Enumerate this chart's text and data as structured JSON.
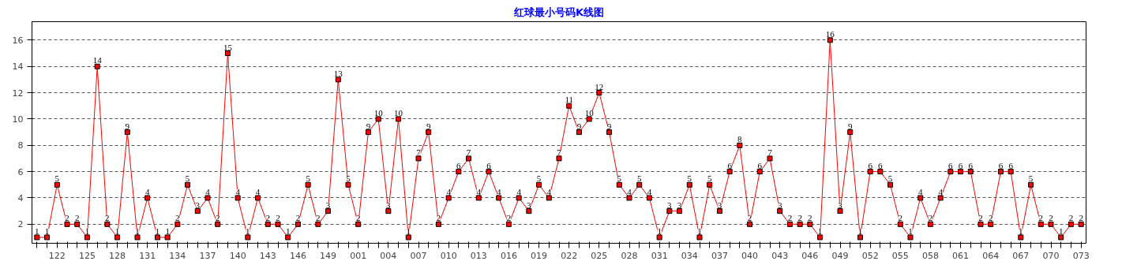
{
  "chart_data": {
    "type": "line",
    "title": "红球最小号码K线图",
    "categories": [
      null,
      null,
      "122",
      null,
      null,
      "125",
      null,
      null,
      "128",
      null,
      null,
      "131",
      null,
      null,
      "134",
      null,
      null,
      "137",
      null,
      null,
      "140",
      null,
      null,
      "143",
      null,
      null,
      "146",
      null,
      null,
      "149",
      null,
      null,
      "001",
      null,
      null,
      "004",
      null,
      null,
      "007",
      null,
      null,
      "010",
      null,
      null,
      "013",
      null,
      null,
      "016",
      null,
      null,
      "019",
      null,
      null,
      "022",
      null,
      null,
      "025",
      null,
      null,
      "028",
      null,
      null,
      "031",
      null,
      null,
      "034",
      null,
      null,
      "037",
      null,
      null,
      "040",
      null,
      null,
      "043",
      null,
      null,
      "046",
      null,
      null,
      "049",
      null,
      null,
      "052",
      null,
      null,
      "055",
      null,
      null,
      "058",
      null,
      null,
      "061",
      null,
      null,
      "064",
      null,
      null,
      "067",
      null,
      null,
      "070",
      null,
      null,
      "073"
    ],
    "series": [
      {
        "color": "#ff0000",
        "values": [
          1,
          1,
          5,
          2,
          2,
          1,
          14,
          2,
          1,
          9,
          1,
          4,
          1,
          1,
          2,
          5,
          3,
          4,
          2,
          15,
          4,
          1,
          4,
          2,
          2,
          1,
          2,
          5,
          2,
          3,
          13,
          5,
          2,
          9,
          10,
          3,
          10,
          1,
          7,
          9,
          2,
          4,
          6,
          7,
          4,
          6,
          4,
          2,
          4,
          3,
          5,
          4,
          7,
          11,
          9,
          10,
          12,
          9,
          5,
          4,
          5,
          4,
          1,
          3,
          3,
          5,
          1,
          5,
          3,
          6,
          8,
          2,
          6,
          7,
          3,
          2,
          2,
          2,
          1,
          16,
          3,
          9,
          1,
          6,
          6,
          5,
          2,
          1,
          4,
          2,
          4,
          6,
          6,
          6,
          2,
          2,
          6,
          6,
          1,
          5,
          2,
          2,
          1,
          2,
          2
        ]
      }
    ],
    "ylim": [
      0.55,
      17.4
    ],
    "yticks": [
      2,
      4,
      6,
      8,
      10,
      12,
      14,
      16
    ],
    "grid": "y",
    "marker": "square",
    "line_style": "solid",
    "data_labels": true
  }
}
